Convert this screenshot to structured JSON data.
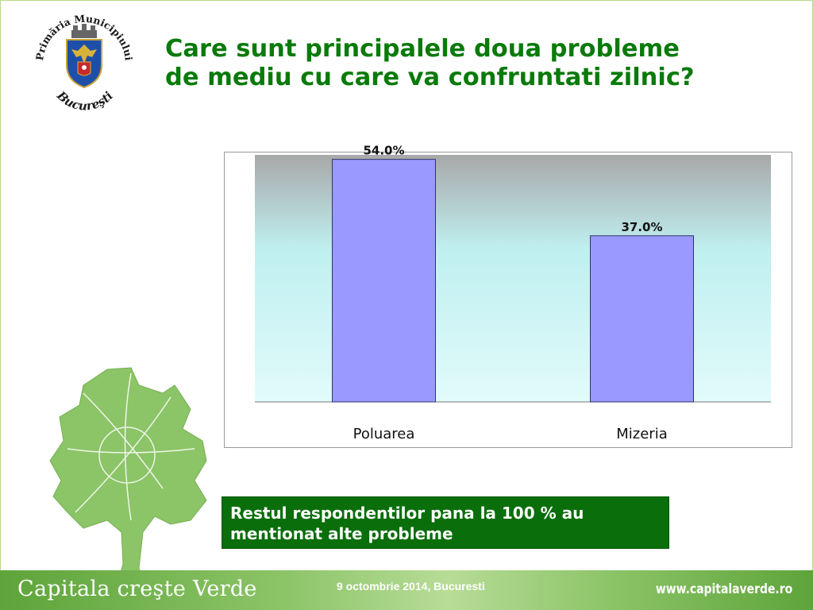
{
  "page": {
    "title_line1": "Care sunt principalele doua probleme",
    "title_line2": "de mediu cu care va confruntati zilnic?",
    "logo": {
      "icon": "bucharest-coat-of-arms-icon",
      "top_text": "Primăria Municipiului",
      "bottom_text": "Bucureşti"
    },
    "note": "Restul respondentilor pana la 100 % au mentionat alte probleme",
    "footer": {
      "slogan": "Capitala creşte Verde",
      "date": "9 octombrie 2014, Bucuresti",
      "website": "www.capitalaverde.ro"
    },
    "colors": {
      "title": "#0a7a0a",
      "bar": "#9999ff",
      "note_bg": "#0a6e0a",
      "tree": "#8cc468"
    }
  },
  "chart_data": {
    "type": "bar",
    "categories": [
      "Poluarea",
      "Mizeria"
    ],
    "values": [
      54.0,
      37.0
    ],
    "data_labels": [
      "54.0%",
      "37.0%"
    ],
    "ylim": [
      0,
      55
    ],
    "grid": false,
    "legend": "none"
  }
}
